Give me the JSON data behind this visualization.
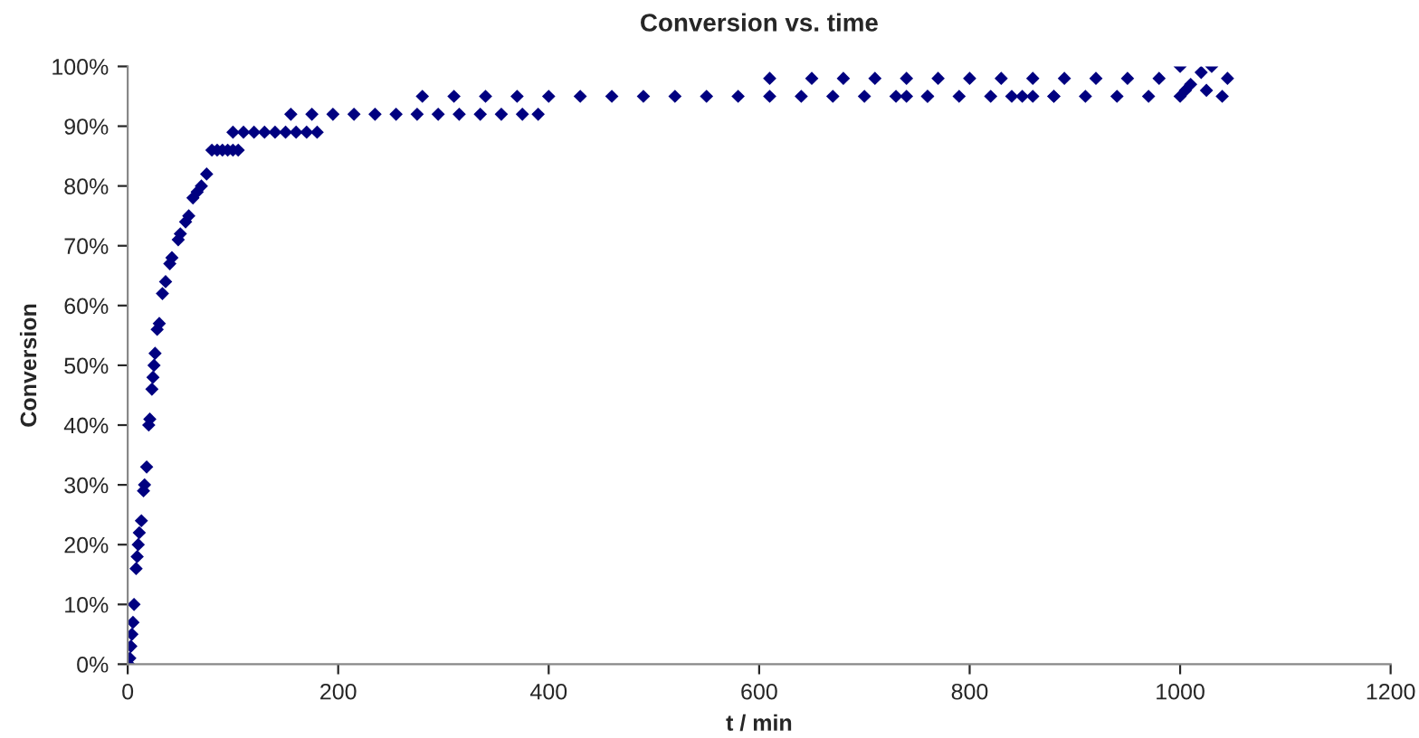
{
  "chart_data": {
    "type": "scatter",
    "title": "Conversion vs. time",
    "xlabel": "t / min",
    "ylabel": "Conversion",
    "xlim": [
      0,
      1200
    ],
    "xticks": [
      0,
      200,
      400,
      600,
      800,
      1000,
      1200
    ],
    "ylim": [
      0,
      100
    ],
    "yticks": [
      {
        "value": 0,
        "label": "0%"
      },
      {
        "value": 10,
        "label": "10%"
      },
      {
        "value": 20,
        "label": "20%"
      },
      {
        "value": 30,
        "label": "30%"
      },
      {
        "value": 40,
        "label": "40%"
      },
      {
        "value": 50,
        "label": "50%"
      },
      {
        "value": 60,
        "label": "60%"
      },
      {
        "value": 70,
        "label": "70%"
      },
      {
        "value": 80,
        "label": "80%"
      },
      {
        "value": 90,
        "label": "90%"
      },
      {
        "value": 100,
        "label": "100%"
      }
    ],
    "grid": false,
    "marker": "diamond",
    "series": [
      {
        "color": "#000080",
        "x": [
          1,
          2,
          3,
          4,
          5,
          6,
          8,
          9,
          10,
          11,
          13,
          15,
          16,
          18,
          20,
          21,
          23,
          24,
          25,
          26,
          28,
          30,
          33,
          36,
          40,
          42,
          48,
          50,
          55,
          58,
          62,
          66,
          70,
          75,
          80,
          85,
          90,
          95,
          100,
          105,
          100,
          110,
          120,
          130,
          140,
          150,
          160,
          170,
          180,
          155,
          175,
          195,
          215,
          235,
          255,
          275,
          295,
          315,
          335,
          355,
          375,
          390,
          280,
          310,
          340,
          370,
          400,
          430,
          460,
          490,
          520,
          550,
          580,
          610,
          640,
          670,
          700,
          730,
          760,
          790,
          820,
          850,
          880,
          910,
          940,
          970,
          1000,
          610,
          650,
          680,
          710,
          740,
          770,
          800,
          830,
          860,
          890,
          920,
          950,
          980,
          740,
          760,
          840,
          860,
          880,
          1000,
          1005,
          1010,
          1020,
          1025,
          1030,
          1040,
          1045
        ],
        "values": [
          0,
          1,
          3,
          5,
          7,
          10,
          16,
          18,
          20,
          22,
          24,
          29,
          30,
          33,
          40,
          41,
          46,
          48,
          50,
          52,
          56,
          57,
          62,
          64,
          67,
          68,
          71,
          72,
          74,
          75,
          78,
          79,
          80,
          82,
          86,
          86,
          86,
          86,
          86,
          86,
          89,
          89,
          89,
          89,
          89,
          89,
          89,
          89,
          89,
          92,
          92,
          92,
          92,
          92,
          92,
          92,
          92,
          92,
          92,
          92,
          92,
          92,
          95,
          95,
          95,
          95,
          95,
          95,
          95,
          95,
          95,
          95,
          95,
          95,
          95,
          95,
          95,
          95,
          95,
          95,
          95,
          95,
          95,
          95,
          95,
          95,
          95,
          98,
          98,
          98,
          98,
          98,
          98,
          98,
          98,
          98,
          98,
          98,
          98,
          98,
          95,
          95,
          95,
          95,
          95,
          100,
          96,
          97,
          99,
          96,
          100,
          95,
          98
        ]
      }
    ]
  }
}
